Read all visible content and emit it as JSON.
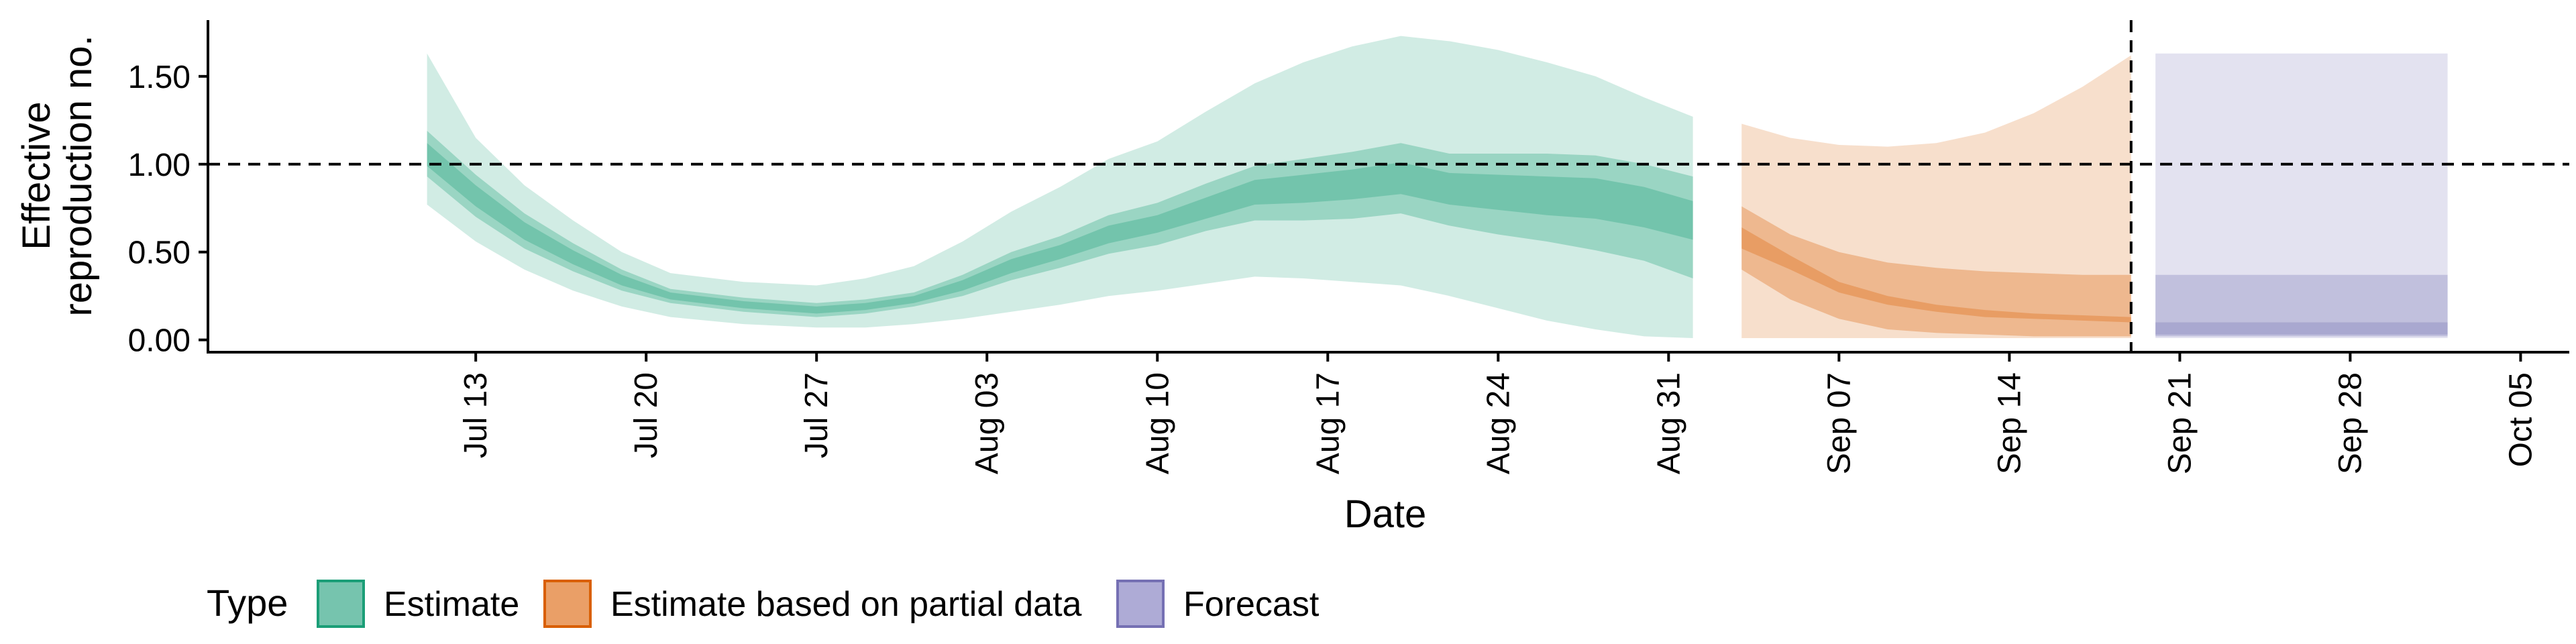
{
  "chart_data": {
    "type": "area",
    "xlabel": "Date",
    "ylabel_lines": [
      "Effective",
      "reproduction no."
    ],
    "ylim": [
      -0.07,
      1.82
    ],
    "y_ticks": [
      0,
      0.5,
      1,
      1.5
    ],
    "y_tick_labels": [
      "0.00",
      "0.50",
      "1.00",
      "1.50"
    ],
    "x_ticks": [
      "2020-07-13",
      "2020-07-20",
      "2020-07-27",
      "2020-08-03",
      "2020-08-10",
      "2020-08-17",
      "2020-08-24",
      "2020-08-31",
      "2020-09-07",
      "2020-09-14",
      "2020-09-21",
      "2020-09-28",
      "2020-10-05"
    ],
    "x_tick_labels": [
      "Jul 13",
      "Jul 20",
      "Jul 27",
      "Aug 03",
      "Aug 10",
      "Aug 17",
      "Aug 24",
      "Aug 31",
      "Sep 07",
      "Sep 14",
      "Sep 21",
      "Sep 28",
      "Oct 05"
    ],
    "xlim": [
      "2020-07-02",
      "2020-10-07"
    ],
    "reference_hline": 1.0,
    "reference_vline": "2020-09-19",
    "grid": false,
    "legend": {
      "title": "Type",
      "position": "bottom",
      "entries": [
        {
          "label": "Estimate",
          "color": "#1b9e77"
        },
        {
          "label": "Estimate based on partial data",
          "color": "#d95f02"
        },
        {
          "label": "Forecast",
          "color": "#7570b3"
        }
      ]
    },
    "series": [
      {
        "name": "Estimate",
        "color": "#1b9e77",
        "dates": [
          "2020-07-11",
          "2020-07-13",
          "2020-07-15",
          "2020-07-17",
          "2020-07-19",
          "2020-07-21",
          "2020-07-24",
          "2020-07-27",
          "2020-07-29",
          "2020-07-31",
          "2020-08-02",
          "2020-08-04",
          "2020-08-06",
          "2020-08-08",
          "2020-08-10",
          "2020-08-12",
          "2020-08-14",
          "2020-08-16",
          "2020-08-18",
          "2020-08-20",
          "2020-08-22",
          "2020-08-24",
          "2020-08-26",
          "2020-08-28",
          "2020-08-30",
          "2020-09-01"
        ],
        "median": [
          1.05,
          0.82,
          0.62,
          0.47,
          0.34,
          0.25,
          0.2,
          0.17,
          0.19,
          0.23,
          0.31,
          0.42,
          0.5,
          0.6,
          0.66,
          0.75,
          0.84,
          0.86,
          0.88,
          0.92,
          0.86,
          0.84,
          0.82,
          0.8,
          0.75,
          0.68
        ],
        "ci20": [
          [
            0.99,
            1.12
          ],
          [
            0.76,
            0.88
          ],
          [
            0.57,
            0.67
          ],
          [
            0.43,
            0.51
          ],
          [
            0.31,
            0.37
          ],
          [
            0.23,
            0.27
          ],
          [
            0.18,
            0.22
          ],
          [
            0.15,
            0.19
          ],
          [
            0.17,
            0.21
          ],
          [
            0.21,
            0.25
          ],
          [
            0.28,
            0.34
          ],
          [
            0.38,
            0.46
          ],
          [
            0.46,
            0.54
          ],
          [
            0.55,
            0.65
          ],
          [
            0.61,
            0.71
          ],
          [
            0.69,
            0.81
          ],
          [
            0.77,
            0.91
          ],
          [
            0.78,
            0.94
          ],
          [
            0.8,
            0.97
          ],
          [
            0.83,
            1.01
          ],
          [
            0.77,
            0.95
          ],
          [
            0.74,
            0.94
          ],
          [
            0.71,
            0.93
          ],
          [
            0.69,
            0.92
          ],
          [
            0.64,
            0.87
          ],
          [
            0.57,
            0.79
          ]
        ],
        "ci50": [
          [
            0.93,
            1.19
          ],
          [
            0.7,
            0.94
          ],
          [
            0.52,
            0.72
          ],
          [
            0.39,
            0.55
          ],
          [
            0.28,
            0.4
          ],
          [
            0.21,
            0.29
          ],
          [
            0.16,
            0.24
          ],
          [
            0.13,
            0.21
          ],
          [
            0.15,
            0.23
          ],
          [
            0.19,
            0.27
          ],
          [
            0.25,
            0.37
          ],
          [
            0.34,
            0.5
          ],
          [
            0.41,
            0.59
          ],
          [
            0.49,
            0.71
          ],
          [
            0.54,
            0.78
          ],
          [
            0.62,
            0.89
          ],
          [
            0.68,
            0.99
          ],
          [
            0.68,
            1.03
          ],
          [
            0.69,
            1.07
          ],
          [
            0.72,
            1.12
          ],
          [
            0.65,
            1.06
          ],
          [
            0.6,
            1.06
          ],
          [
            0.56,
            1.06
          ],
          [
            0.51,
            1.05
          ],
          [
            0.45,
            1.0
          ],
          [
            0.35,
            0.93
          ]
        ],
        "ci90": [
          [
            0.77,
            1.63
          ],
          [
            0.56,
            1.15
          ],
          [
            0.4,
            0.88
          ],
          [
            0.28,
            0.68
          ],
          [
            0.19,
            0.5
          ],
          [
            0.13,
            0.38
          ],
          [
            0.09,
            0.33
          ],
          [
            0.07,
            0.31
          ],
          [
            0.07,
            0.35
          ],
          [
            0.09,
            0.42
          ],
          [
            0.12,
            0.56
          ],
          [
            0.16,
            0.73
          ],
          [
            0.2,
            0.87
          ],
          [
            0.25,
            1.03
          ],
          [
            0.28,
            1.13
          ],
          [
            0.32,
            1.3
          ],
          [
            0.36,
            1.46
          ],
          [
            0.35,
            1.58
          ],
          [
            0.33,
            1.67
          ],
          [
            0.31,
            1.73
          ],
          [
            0.25,
            1.7
          ],
          [
            0.18,
            1.65
          ],
          [
            0.11,
            1.58
          ],
          [
            0.06,
            1.5
          ],
          [
            0.02,
            1.38
          ],
          [
            0.01,
            1.27
          ]
        ]
      },
      {
        "name": "Estimate based on partial data",
        "color": "#d95f02",
        "dates": [
          "2020-09-03",
          "2020-09-05",
          "2020-09-07",
          "2020-09-09",
          "2020-09-11",
          "2020-09-13",
          "2020-09-15",
          "2020-09-17",
          "2020-09-19"
        ],
        "median": [
          0.58,
          0.44,
          0.3,
          0.22,
          0.18,
          0.15,
          0.13,
          0.12,
          0.11
        ],
        "ci20": [
          [
            0.52,
            0.64
          ],
          [
            0.4,
            0.48
          ],
          [
            0.27,
            0.33
          ],
          [
            0.2,
            0.25
          ],
          [
            0.16,
            0.2
          ],
          [
            0.13,
            0.17
          ],
          [
            0.12,
            0.15
          ],
          [
            0.11,
            0.14
          ],
          [
            0.1,
            0.13
          ]
        ],
        "ci50": [
          [
            0.4,
            0.76
          ],
          [
            0.23,
            0.6
          ],
          [
            0.12,
            0.5
          ],
          [
            0.06,
            0.44
          ],
          [
            0.04,
            0.41
          ],
          [
            0.03,
            0.39
          ],
          [
            0.02,
            0.38
          ],
          [
            0.02,
            0.37
          ],
          [
            0.02,
            0.37
          ]
        ],
        "ci90": [
          [
            0.01,
            1.23
          ],
          [
            0.01,
            1.15
          ],
          [
            0.01,
            1.11
          ],
          [
            0.01,
            1.1
          ],
          [
            0.01,
            1.12
          ],
          [
            0.01,
            1.18
          ],
          [
            0.01,
            1.29
          ],
          [
            0.01,
            1.44
          ],
          [
            0.01,
            1.62
          ]
        ]
      },
      {
        "name": "Forecast",
        "color": "#7570b3",
        "dates": [
          "2020-09-20",
          "2020-10-02"
        ],
        "median": [
          0.06,
          0.06
        ],
        "ci20": [
          [
            0.03,
            0.1
          ],
          [
            0.03,
            0.1
          ]
        ],
        "ci50": [
          [
            0.02,
            0.37
          ],
          [
            0.02,
            0.37
          ]
        ],
        "ci90": [
          [
            0.01,
            1.63
          ],
          [
            0.01,
            1.63
          ]
        ]
      }
    ]
  }
}
